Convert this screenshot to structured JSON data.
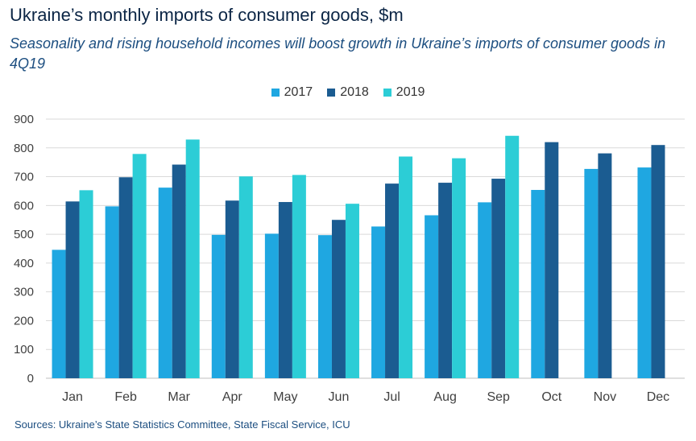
{
  "title": "Ukraine’s monthly imports of consumer goods, $m",
  "subtitle": "Seasonality and rising household incomes will boost growth in Ukraine’s imports of consumer goods in 4Q19",
  "source": "Sources: Ukraine’s State Statistics Committee, State Fiscal Service, ICU",
  "chart_data": {
    "type": "bar",
    "title": "Ukraine’s monthly imports of consumer goods, $m",
    "categories": [
      "Jan",
      "Feb",
      "Mar",
      "Apr",
      "May",
      "Jun",
      "Jul",
      "Aug",
      "Sep",
      "Oct",
      "Nov",
      "Dec"
    ],
    "series": [
      {
        "name": "2017",
        "color": "#1fa7e1",
        "values": [
          446,
          597,
          662,
          498,
          502,
          497,
          527,
          566,
          611,
          654,
          727,
          732
        ]
      },
      {
        "name": "2018",
        "color": "#1b5c91",
        "values": [
          614,
          698,
          742,
          617,
          612,
          550,
          676,
          679,
          693,
          820,
          781,
          810
        ]
      },
      {
        "name": "2019",
        "color": "#2ccdd6",
        "values": [
          653,
          779,
          829,
          701,
          706,
          606,
          770,
          764,
          842,
          null,
          null,
          null
        ]
      }
    ],
    "yticks": [
      0,
      100,
      200,
      300,
      400,
      500,
      600,
      700,
      800,
      900
    ],
    "ylim": [
      0,
      900
    ],
    "grid": true,
    "legend_position": "top-center"
  }
}
